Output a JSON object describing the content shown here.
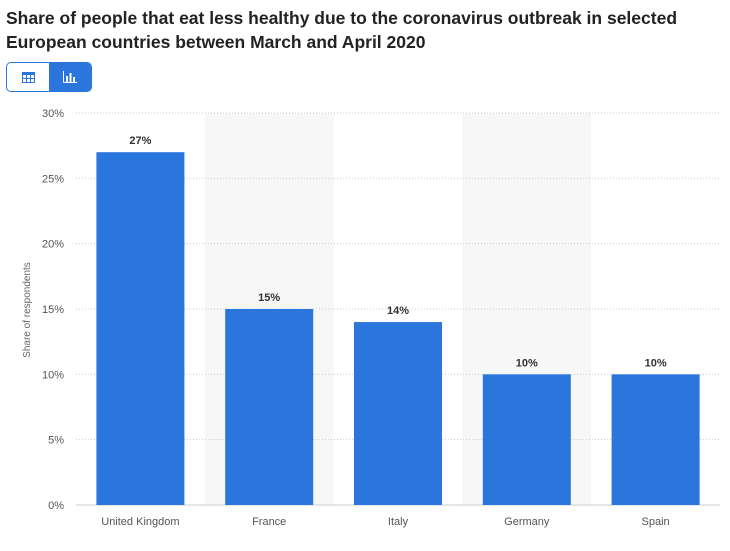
{
  "header": {
    "title": "Share of people that eat less healthy due to the coronavirus outbreak in selected European countries between March and April 2020"
  },
  "toolbar": {
    "table_view": "table-icon",
    "chart_view": "bar-chart-icon"
  },
  "colors": {
    "bar": "#2a76dd",
    "band": "#f7f7f7",
    "grid": "#cccccc",
    "accent": "#2a76dd"
  },
  "chart_data": {
    "type": "bar",
    "title": "Share of people that eat less healthy due to the coronavirus outbreak in selected European countries between March and April 2020",
    "categories": [
      "United Kingdom",
      "France",
      "Italy",
      "Germany",
      "Spain"
    ],
    "values": [
      27,
      15,
      14,
      10,
      10
    ],
    "data_labels": [
      "27%",
      "15%",
      "14%",
      "10%",
      "10%"
    ],
    "xlabel": "",
    "ylabel": "Share of respondents",
    "ylim": [
      0,
      30
    ],
    "yticks": [
      0,
      5,
      10,
      15,
      20,
      25,
      30
    ],
    "ytick_labels": [
      "0%",
      "5%",
      "10%",
      "15%",
      "20%",
      "25%",
      "30%"
    ],
    "grid": true
  }
}
